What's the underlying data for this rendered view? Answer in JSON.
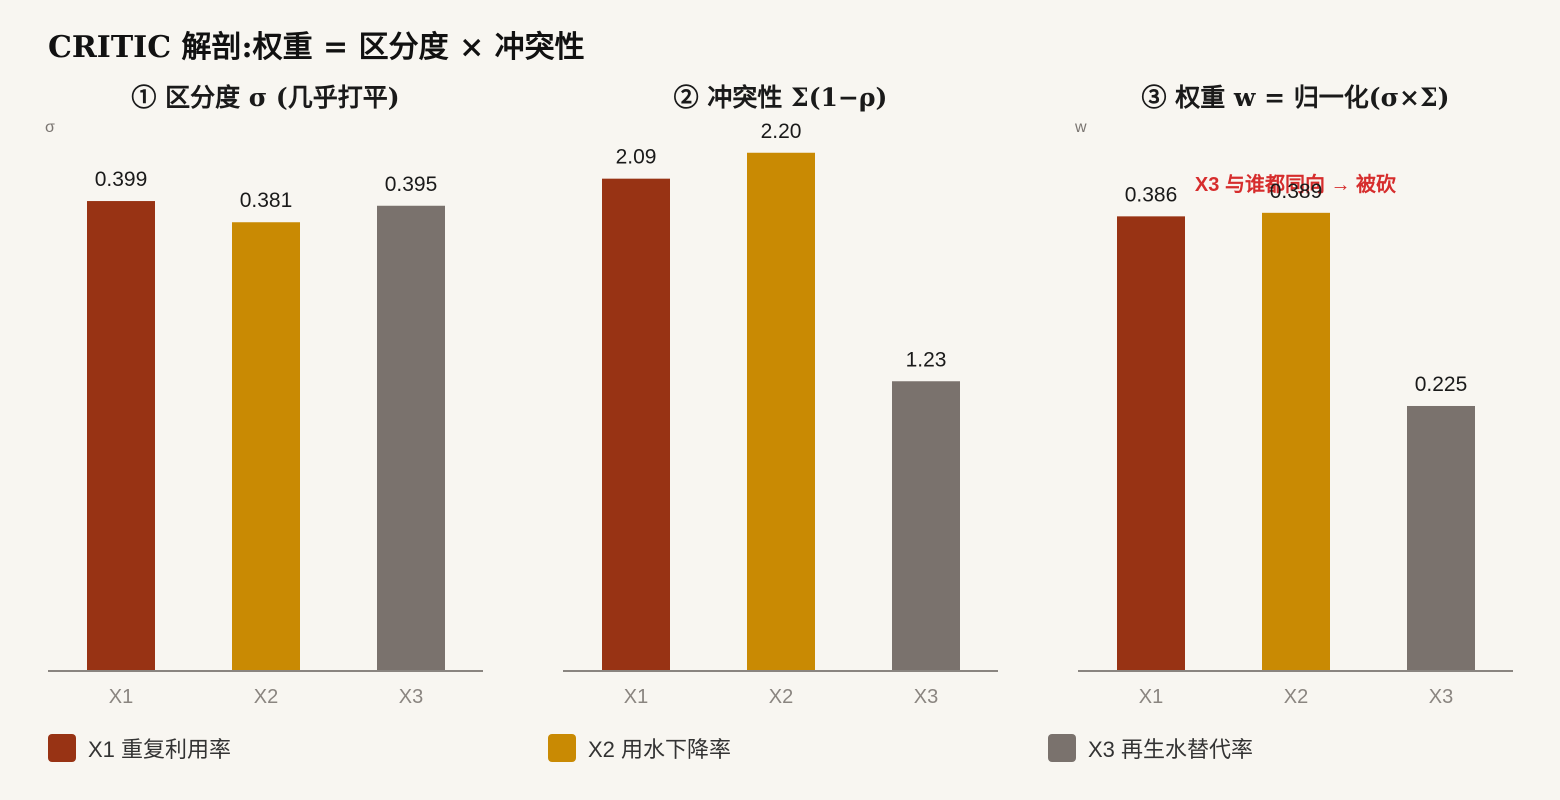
{
  "title": "CRITIC 解剖:权重 = 区分度 × 冲突性",
  "colors": {
    "X1": "#983314",
    "X2": "#c98a03",
    "X3": "#7a726d",
    "annotation": "#d62d2d",
    "background": "#f8f6f1"
  },
  "legend": [
    {
      "key": "X1",
      "label": "X1 重复利用率"
    },
    {
      "key": "X2",
      "label": "X2 用水下降率"
    },
    {
      "key": "X3",
      "label": "X3 再生水替代率"
    }
  ],
  "chart_data": [
    {
      "type": "bar",
      "title": "① 区分度 σ (几乎打平)",
      "ylabel": "σ",
      "categories": [
        "X1",
        "X2",
        "X3"
      ],
      "values": [
        0.399,
        0.381,
        0.395
      ],
      "value_labels": [
        "0.399",
        "0.381",
        "0.395"
      ],
      "ylim": [
        0,
        0.6
      ],
      "annotation": ""
    },
    {
      "type": "bar",
      "title": "② 冲突性 Σ(1−ρ)",
      "ylabel": "",
      "categories": [
        "X1",
        "X2",
        "X3"
      ],
      "values": [
        2.09,
        2.2,
        1.23
      ],
      "value_labels": [
        "2.09",
        "2.20",
        "1.23"
      ],
      "ylim": [
        0,
        3.0
      ],
      "annotation": ""
    },
    {
      "type": "bar",
      "title": "③ 权重 w = 归一化(σ×Σ)",
      "ylabel": "w",
      "categories": [
        "X1",
        "X2",
        "X3"
      ],
      "values": [
        0.386,
        0.389,
        0.225
      ],
      "value_labels": [
        "0.386",
        "0.389",
        "0.225"
      ],
      "ylim": [
        0,
        0.6
      ],
      "annotation": "X3 与谁都同向 → 被砍"
    }
  ]
}
